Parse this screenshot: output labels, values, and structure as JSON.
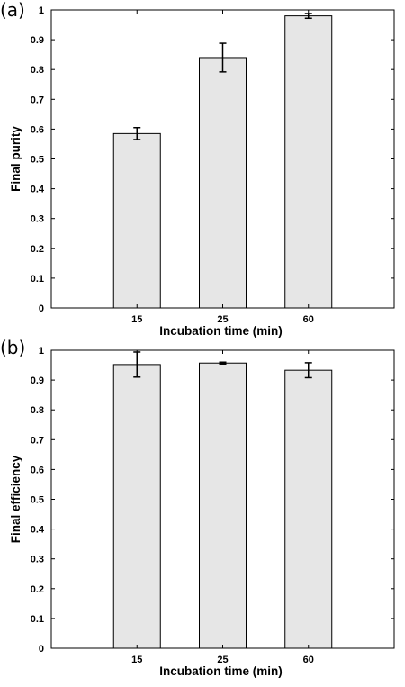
{
  "chart_data": [
    {
      "type": "bar",
      "panel_label": "(a)",
      "categories": [
        "15",
        "25",
        "60"
      ],
      "values": [
        0.585,
        0.84,
        0.98
      ],
      "errors": [
        0.02,
        0.048,
        0.008
      ],
      "xlabel": "Incubation time (min)",
      "ylabel": "Final purity",
      "ylim": [
        0,
        1
      ],
      "yticks": [
        "0",
        "0.1",
        "0.2",
        "0.3",
        "0.4",
        "0.5",
        "0.6",
        "0.7",
        "0.8",
        "0.9",
        "1"
      ],
      "bar_color": "#e6e6e6",
      "grid": false
    },
    {
      "type": "bar",
      "panel_label": "(b)",
      "categories": [
        "15",
        "25",
        "60"
      ],
      "values": [
        0.952,
        0.957,
        0.933
      ],
      "errors": [
        0.042,
        0.003,
        0.025
      ],
      "xlabel": "Incubation time (min)",
      "ylabel": "Final efficiency",
      "ylim": [
        0,
        1
      ],
      "yticks": [
        "0",
        "0.1",
        "0.2",
        "0.3",
        "0.4",
        "0.5",
        "0.6",
        "0.7",
        "0.8",
        "0.9",
        "1"
      ],
      "bar_color": "#e6e6e6",
      "grid": false
    }
  ]
}
